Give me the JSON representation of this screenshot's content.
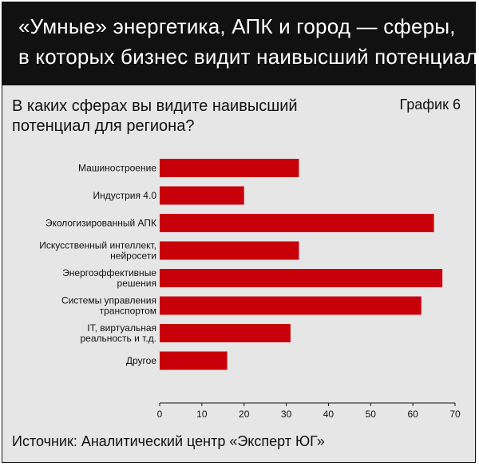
{
  "header": {
    "title_line1": "«Умные» энергетика, АПК и город — сферы,",
    "title_line2": "в которых бизнес видит наивысший потенциал"
  },
  "question": "В каких сферах вы видите наивысший потенциал для региона?",
  "chart_number": "График 6",
  "source": "Источник: Аналитический центр «Эксперт ЮГ»",
  "colors": {
    "bar": "#c8000a",
    "header_bg": "#111111",
    "panel_bg": "#e6e6e6"
  },
  "chart_data": {
    "type": "bar",
    "orientation": "horizontal",
    "categories": [
      [
        "Машиностроение"
      ],
      [
        "Индустрия 4.0"
      ],
      [
        "Экологизированный АПК"
      ],
      [
        "Искусственный интеллект,",
        "нейросети"
      ],
      [
        "Энергоэффективные",
        "решения"
      ],
      [
        "Системы управления",
        "транспортом"
      ],
      [
        "IT, виртуальная",
        "реальность и т.д."
      ],
      [
        "Другое"
      ]
    ],
    "values": [
      33,
      20,
      65,
      33,
      67,
      62,
      31,
      16
    ],
    "xlim": [
      0,
      70
    ],
    "xticks": [
      "0",
      "10",
      "20",
      "30",
      "40",
      "50",
      "60",
      "70"
    ],
    "grid": false,
    "title": "",
    "xlabel": "",
    "ylabel": ""
  }
}
